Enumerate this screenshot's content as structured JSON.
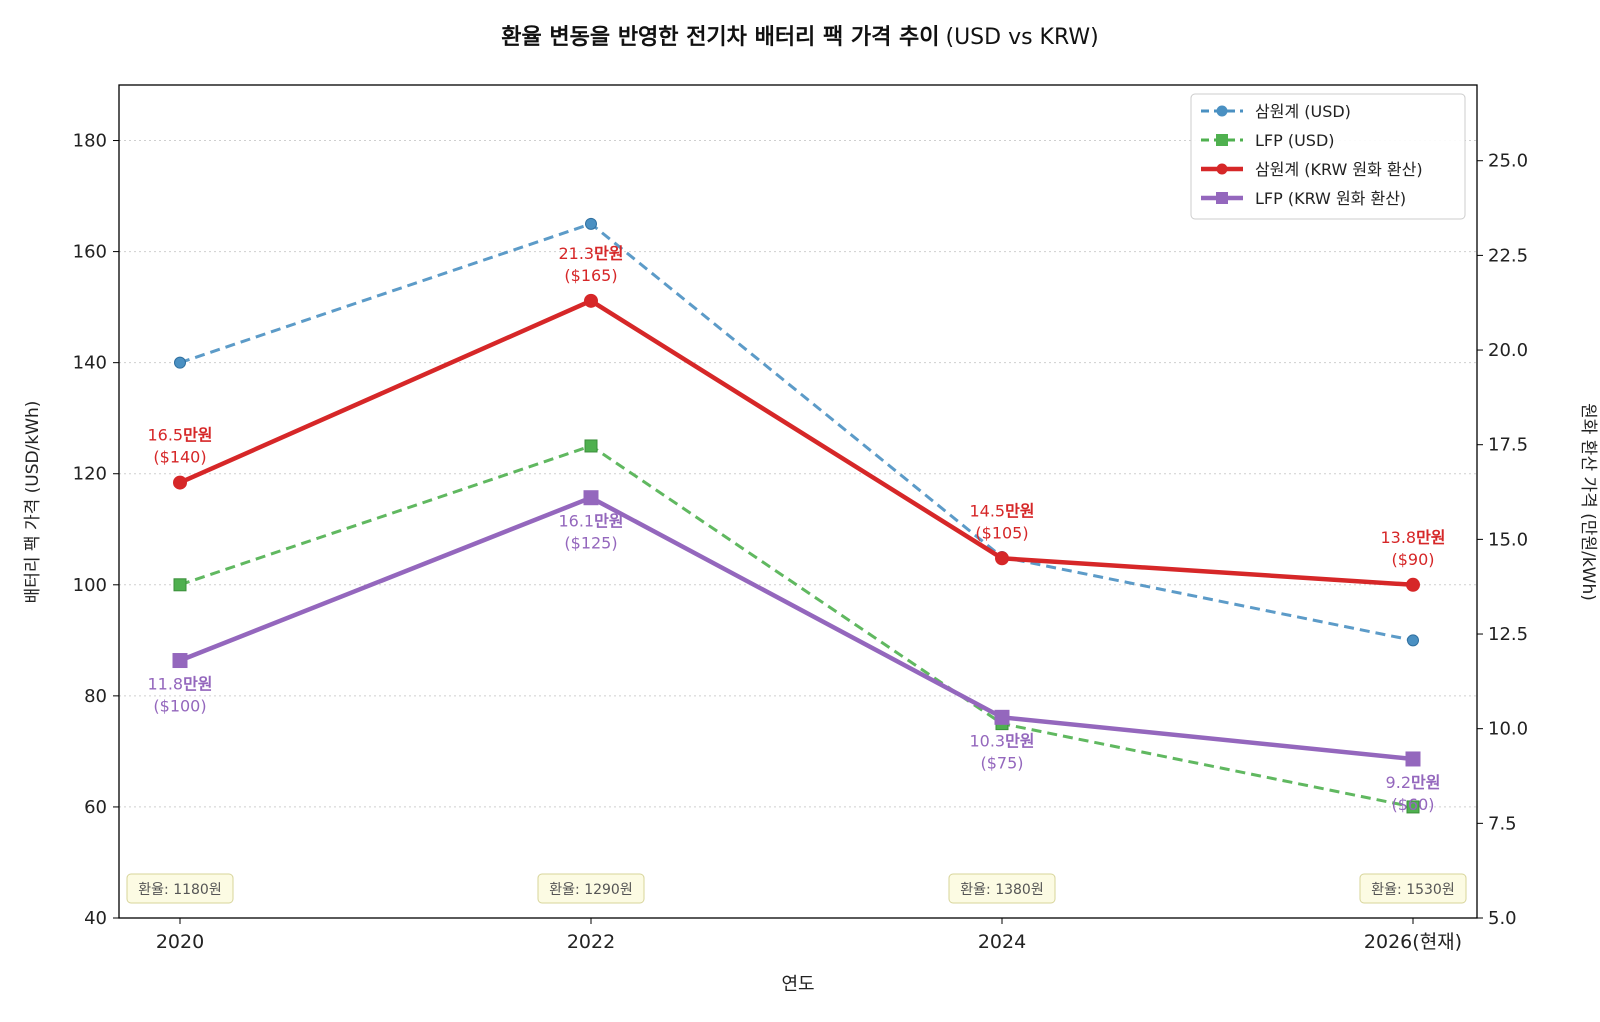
{
  "chart_data": {
    "type": "line",
    "title_bold": "환율 변동을 반영한 전기차 배터리 팩 가격 추이",
    "title_normal": "(USD vs KRW)",
    "xlabel": "연도",
    "ylabel_left": "배터리 팩 가격 (USD/kWh)",
    "ylabel_right": "원화 환산 가격 (만원/kWh)",
    "categories": [
      "2020",
      "2022",
      "2024",
      "2026(현재)"
    ],
    "ylim_left": [
      40,
      190
    ],
    "ylim_right": [
      5.0,
      27.0
    ],
    "yticks_left": [
      "40",
      "60",
      "80",
      "100",
      "120",
      "140",
      "160",
      "180"
    ],
    "yticks_right": [
      "5.0",
      "7.5",
      "10.0",
      "12.5",
      "15.0",
      "17.5",
      "20.0",
      "22.5",
      "25.0"
    ],
    "grid": "horizontal dotted",
    "legend_position": "top-right",
    "exchange_rates": [
      "환율: 1180원",
      "환율: 1290원",
      "환율: 1380원",
      "환율: 1530원"
    ],
    "series": [
      {
        "name": "삼원계 (USD)",
        "axis": "left",
        "values": [
          140,
          165,
          105,
          90
        ],
        "color": "#4a90c2",
        "style": "dashed",
        "marker": "circle"
      },
      {
        "name": "LFP (USD)",
        "axis": "left",
        "values": [
          100,
          125,
          75,
          60
        ],
        "color": "#4fb04f",
        "style": "dashed",
        "marker": "square"
      },
      {
        "name": "삼원계 (KRW 원화 환산)",
        "axis": "right",
        "values": [
          16.5,
          21.3,
          14.5,
          13.8
        ],
        "color": "#d62728",
        "style": "solid",
        "marker": "circle"
      },
      {
        "name": "LFP (KRW 원화 환산)",
        "axis": "right",
        "values": [
          11.8,
          16.1,
          10.3,
          9.2
        ],
        "color": "#9467bd",
        "style": "solid",
        "marker": "square"
      }
    ],
    "annotations": {
      "ternary": [
        {
          "num": "16.5",
          "unit": "만원",
          "usd": "($140)"
        },
        {
          "num": "21.3",
          "unit": "만원",
          "usd": "($165)"
        },
        {
          "num": "14.5",
          "unit": "만원",
          "usd": "($105)"
        },
        {
          "num": "13.8",
          "unit": "만원",
          "usd": "($90)"
        }
      ],
      "lfp": [
        {
          "num": "11.8",
          "unit": "만원",
          "usd": "($100)"
        },
        {
          "num": "16.1",
          "unit": "만원",
          "usd": "($125)"
        },
        {
          "num": "10.3",
          "unit": "만원",
          "usd": "($75)"
        },
        {
          "num": "9.2",
          "unit": "만원",
          "usd": "($60)"
        }
      ]
    }
  }
}
